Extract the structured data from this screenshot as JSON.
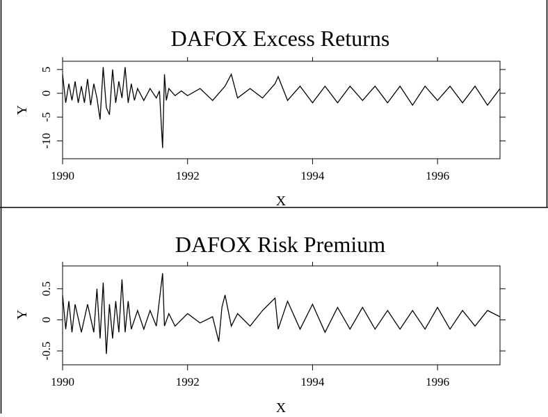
{
  "chart_data": [
    {
      "type": "line",
      "title": "DAFOX Excess Returns",
      "xlabel": "X",
      "ylabel": "Y",
      "xlim": [
        1990,
        1997
      ],
      "ylim": [
        -12,
        6
      ],
      "x_ticks": [
        1990,
        1992,
        1994,
        1996
      ],
      "x_tick_labels": [
        "1990",
        "1992",
        "1994",
        "1996"
      ],
      "y_ticks": [
        5,
        0,
        -5,
        -10
      ],
      "y_tick_labels": [
        "5",
        "0",
        "-5",
        "-10"
      ],
      "grid": false,
      "series": [
        {
          "x": [
            1990.0,
            1990.05,
            1990.1,
            1990.15,
            1990.2,
            1990.25,
            1990.3,
            1990.35,
            1990.4,
            1990.45,
            1990.5,
            1990.55,
            1990.6,
            1990.65,
            1990.7,
            1990.75,
            1990.8,
            1990.85,
            1990.9,
            1990.95,
            1991.0,
            1991.05,
            1991.1,
            1991.15,
            1991.2,
            1991.3,
            1991.4,
            1991.5,
            1991.55,
            1991.6,
            1991.63,
            1991.66,
            1991.7,
            1991.8,
            1991.9,
            1992.0,
            1992.2,
            1992.4,
            1992.6,
            1992.7,
            1992.8,
            1993.0,
            1993.2,
            1993.4,
            1993.45,
            1993.6,
            1993.8,
            1994.0,
            1994.2,
            1994.4,
            1994.6,
            1994.8,
            1995.0,
            1995.2,
            1995.4,
            1995.6,
            1995.8,
            1996.0,
            1996.2,
            1996.4,
            1996.6,
            1996.8,
            1997.0
          ],
          "y": [
            4.0,
            -2.0,
            2.0,
            -1.5,
            2.5,
            -2.0,
            1.5,
            -2.0,
            3.0,
            -2.5,
            2.0,
            -1.0,
            -5.5,
            5.5,
            -3.0,
            -4.5,
            5.0,
            -2.0,
            2.5,
            -1.0,
            5.5,
            -2.0,
            2.0,
            -1.5,
            1.0,
            -1.5,
            1.0,
            -1.0,
            0.5,
            -11.5,
            4.0,
            -1.5,
            1.0,
            -0.5,
            0.5,
            -0.5,
            1.0,
            -1.5,
            1.5,
            4.0,
            -1.0,
            1.0,
            -1.0,
            2.0,
            3.5,
            -1.5,
            1.5,
            -2.0,
            1.5,
            -2.0,
            1.5,
            -1.5,
            1.5,
            -2.0,
            1.5,
            -2.5,
            1.5,
            -1.5,
            1.5,
            -2.0,
            1.5,
            -2.5,
            1.0
          ]
        }
      ]
    },
    {
      "type": "line",
      "title": "DAFOX Risk Premium",
      "xlabel": "X",
      "ylabel": "Y",
      "xlim": [
        1990,
        1997
      ],
      "ylim": [
        -0.6,
        0.8
      ],
      "x_ticks": [
        1990,
        1992,
        1994,
        1996
      ],
      "x_tick_labels": [
        "1990",
        "1992",
        "1994",
        "1996"
      ],
      "y_ticks": [
        0.5,
        0,
        -0.5
      ],
      "y_tick_labels": [
        "0.5",
        "0",
        "-0.5"
      ],
      "grid": false,
      "series": [
        {
          "x": [
            1990.0,
            1990.05,
            1990.1,
            1990.15,
            1990.2,
            1990.3,
            1990.4,
            1990.5,
            1990.55,
            1990.6,
            1990.65,
            1990.7,
            1990.75,
            1990.8,
            1990.85,
            1990.9,
            1990.95,
            1991.0,
            1991.05,
            1991.1,
            1991.2,
            1991.3,
            1991.4,
            1991.5,
            1991.6,
            1991.63,
            1991.7,
            1991.8,
            1992.0,
            1992.2,
            1992.4,
            1992.5,
            1992.55,
            1992.6,
            1992.7,
            1992.8,
            1993.0,
            1993.2,
            1993.4,
            1993.45,
            1993.6,
            1993.8,
            1994.0,
            1994.2,
            1994.4,
            1994.6,
            1994.8,
            1995.0,
            1995.2,
            1995.4,
            1995.6,
            1995.8,
            1996.0,
            1996.2,
            1996.4,
            1996.6,
            1996.8,
            1997.0
          ],
          "y": [
            0.4,
            -0.15,
            0.3,
            -0.2,
            0.25,
            -0.2,
            0.25,
            -0.2,
            0.5,
            -0.3,
            0.6,
            -0.55,
            0.25,
            -0.3,
            0.3,
            -0.2,
            0.65,
            -0.2,
            0.3,
            -0.15,
            0.15,
            -0.15,
            0.15,
            -0.1,
            0.75,
            -0.1,
            0.1,
            -0.1,
            0.1,
            -0.05,
            0.05,
            -0.35,
            0.2,
            0.4,
            -0.1,
            0.1,
            -0.1,
            0.15,
            0.35,
            -0.15,
            0.3,
            -0.15,
            0.25,
            -0.2,
            0.2,
            -0.15,
            0.2,
            -0.15,
            0.15,
            -0.15,
            0.15,
            -0.15,
            0.2,
            -0.15,
            0.15,
            -0.1,
            0.15,
            0.05
          ]
        }
      ]
    }
  ]
}
